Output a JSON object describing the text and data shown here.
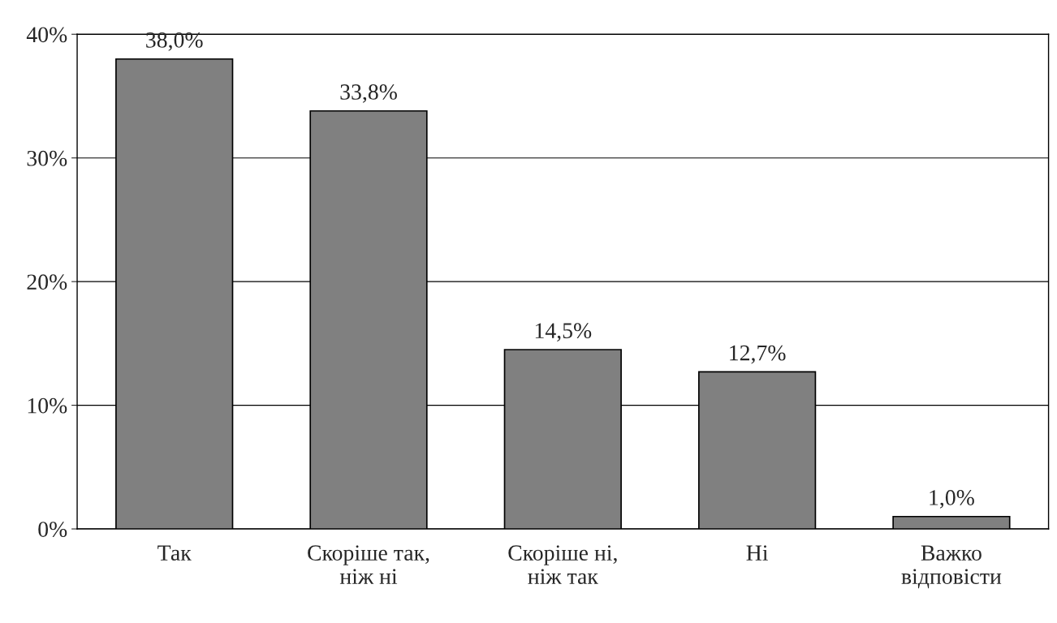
{
  "chart_data": {
    "type": "bar",
    "categories": [
      "Так",
      "Скоріше так,\nніж ні",
      "Скоріше ні,\nніж так",
      "Ні",
      "Важко\nвідповісти"
    ],
    "values": [
      38.0,
      33.8,
      14.5,
      12.7,
      1.0
    ],
    "value_labels": [
      "38,0%",
      "33,8%",
      "14,5%",
      "12,7%",
      "1,0%"
    ],
    "color": "#808080",
    "ylim": [
      0,
      40
    ],
    "yticks": [
      {
        "value": 0,
        "label": "0%"
      },
      {
        "value": 10,
        "label": "10%"
      },
      {
        "value": 20,
        "label": "20%"
      },
      {
        "value": 30,
        "label": "30%"
      },
      {
        "value": 40,
        "label": "40%"
      }
    ],
    "grid": "y",
    "legend": false
  }
}
